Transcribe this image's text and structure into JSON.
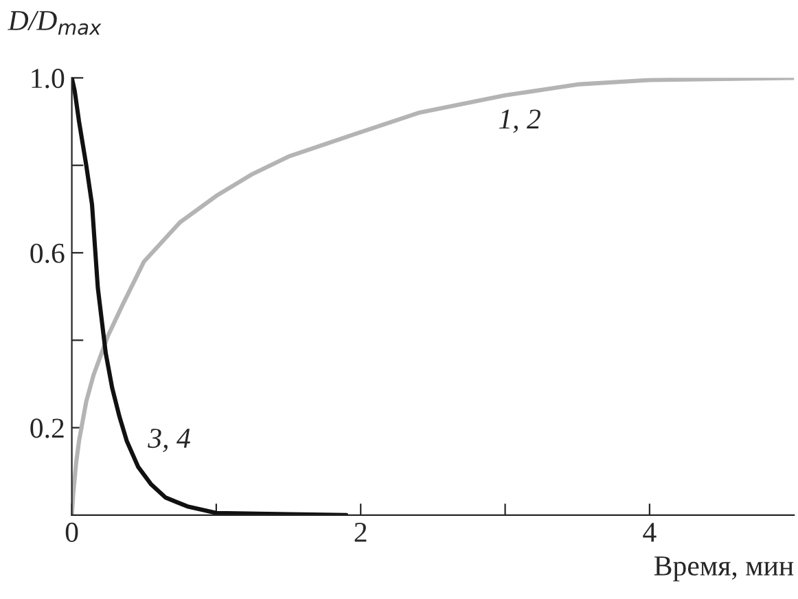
{
  "chart_data": {
    "type": "line",
    "xlabel": "Время, мин",
    "ylabel": "D/D$_{max}$",
    "series": [
      {
        "color": "#b4b4b4",
        "x": [
          0,
          0.01,
          0.03,
          0.05,
          0.1,
          0.15,
          0.25,
          0.35,
          0.5,
          0.75,
          1,
          1.25,
          1.5,
          2,
          2.4,
          3,
          3.5,
          4,
          5
        ],
        "values": [
          0,
          0.05,
          0.12,
          0.17,
          0.26,
          0.32,
          0.41,
          0.48,
          0.58,
          0.67,
          0.73,
          0.78,
          0.82,
          0.876,
          0.92,
          0.96,
          0.985,
          0.995,
          1.0
        ]
      },
      {
        "color": "#111111",
        "x": [
          0,
          0.02,
          0.05,
          0.1,
          0.14,
          0.18,
          0.235,
          0.28,
          0.33,
          0.38,
          0.46,
          0.55,
          0.65,
          0.8,
          1.0,
          1.5,
          1.9
        ],
        "values": [
          1.0,
          0.97,
          0.9,
          0.8,
          0.71,
          0.52,
          0.37,
          0.29,
          0.225,
          0.17,
          0.11,
          0.07,
          0.04,
          0.02,
          0.005,
          0.002,
          0
        ]
      }
    ],
    "annotations": [
      "1, 2",
      "3, 4"
    ],
    "xlim": [
      0,
      5
    ],
    "ylim": [
      0,
      1.0
    ],
    "xticks": [
      {
        "value": 0,
        "label": "0"
      },
      {
        "value": 1,
        "label": null
      },
      {
        "value": 2,
        "label": "2"
      },
      {
        "value": 3,
        "label": null
      },
      {
        "value": 4,
        "label": "4"
      }
    ],
    "yticks": [
      {
        "value": 0.2,
        "label": "0.2"
      },
      {
        "value": 0.4,
        "label": null
      },
      {
        "value": 0.6,
        "label": "0.6"
      },
      {
        "value": 0.8,
        "label": null
      },
      {
        "value": 1.0,
        "label": "1.0"
      }
    ],
    "grid": false,
    "legend": false,
    "marker": "none",
    "line_style": "solid"
  }
}
